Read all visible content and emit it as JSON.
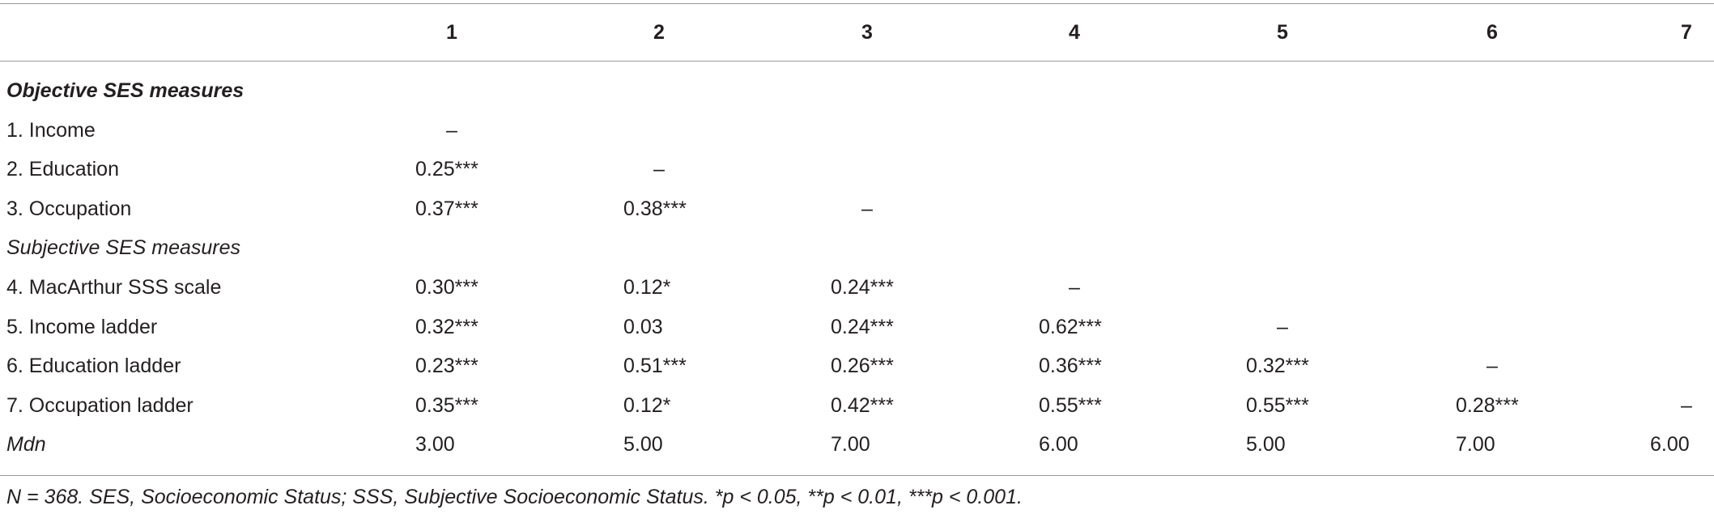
{
  "table": {
    "columns": [
      "1",
      "2",
      "3",
      "4",
      "5",
      "6",
      "7"
    ],
    "rows": [
      {
        "label": "Objective SES measures"
      },
      {
        "label": "1. Income",
        "cells": [
          "–"
        ]
      },
      {
        "label": "2. Education",
        "cells": [
          "0.25***",
          "–"
        ]
      },
      {
        "label": "3. Occupation",
        "cells": [
          "0.37***",
          "0.38***",
          "–"
        ]
      },
      {
        "label": "Subjective SES measures"
      },
      {
        "label": "4. MacArthur SSS scale",
        "cells": [
          "0.30***",
          "0.12*",
          "0.24***",
          "–"
        ]
      },
      {
        "label": "5. Income ladder",
        "cells": [
          "0.32***",
          "0.03",
          "0.24***",
          "0.62***",
          "–"
        ]
      },
      {
        "label": "6. Education ladder",
        "cells": [
          "0.23***",
          "0.51***",
          "0.26***",
          "0.36***",
          "0.32***",
          "–"
        ]
      },
      {
        "label": "7. Occupation ladder",
        "cells": [
          "0.35***",
          "0.12*",
          "0.42***",
          "0.55***",
          "0.55***",
          "0.28***",
          "–"
        ]
      },
      {
        "label": "Mdn",
        "cells": [
          "3.00",
          "5.00",
          "7.00",
          "6.00",
          "5.00",
          "7.00",
          "6.00"
        ]
      }
    ],
    "footnote": "N = 368. SES, Socioeconomic Status; SSS, Subjective Socioeconomic Status. *p < 0.05, **p < 0.01, ***p < 0.001."
  }
}
